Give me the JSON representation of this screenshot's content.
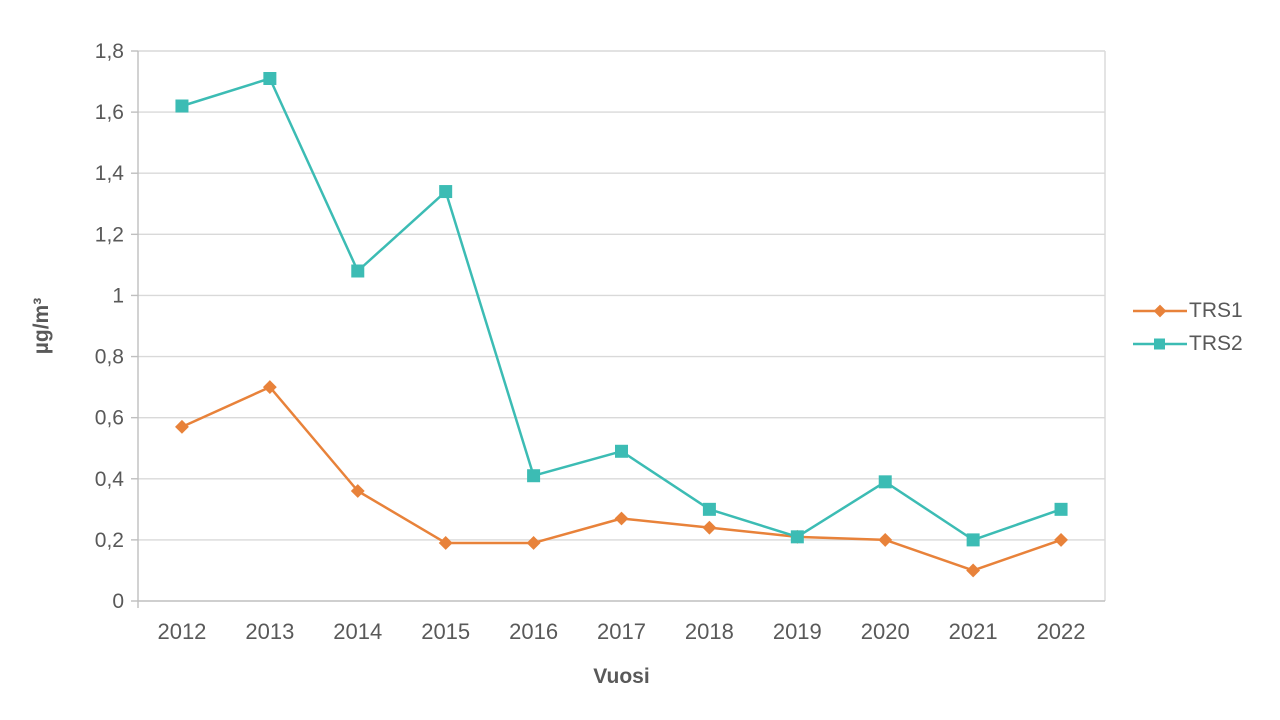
{
  "chart_data": {
    "type": "line",
    "title": "",
    "categories": [
      "2012",
      "2013",
      "2014",
      "2015",
      "2016",
      "2017",
      "2018",
      "2019",
      "2020",
      "2021",
      "2022"
    ],
    "series": [
      {
        "name": "TRS1",
        "color": "#E8823A",
        "marker": "diamond",
        "values": [
          0.57,
          0.7,
          0.36,
          0.19,
          0.19,
          0.27,
          0.24,
          0.21,
          0.2,
          0.1,
          0.2
        ]
      },
      {
        "name": "TRS2",
        "color": "#3CBCB4",
        "marker": "square",
        "values": [
          1.62,
          1.71,
          1.08,
          1.34,
          0.41,
          0.49,
          0.3,
          0.21,
          0.39,
          0.2,
          0.3
        ]
      }
    ],
    "xlabel": "Vuosi",
    "ylabel": "µg/m³",
    "ylim": [
      0,
      1.8
    ],
    "ytick_step": 0.2,
    "ytick_labels": [
      "0",
      "0,2",
      "0,4",
      "0,6",
      "0,8",
      "1",
      "1,2",
      "1,4",
      "1,6",
      "1,8"
    ],
    "grid": true,
    "legend_position": "right"
  },
  "style": {
    "gridline_color": "#D9D9D9",
    "axis_color": "#BFBFBF",
    "text_color": "#595959"
  }
}
